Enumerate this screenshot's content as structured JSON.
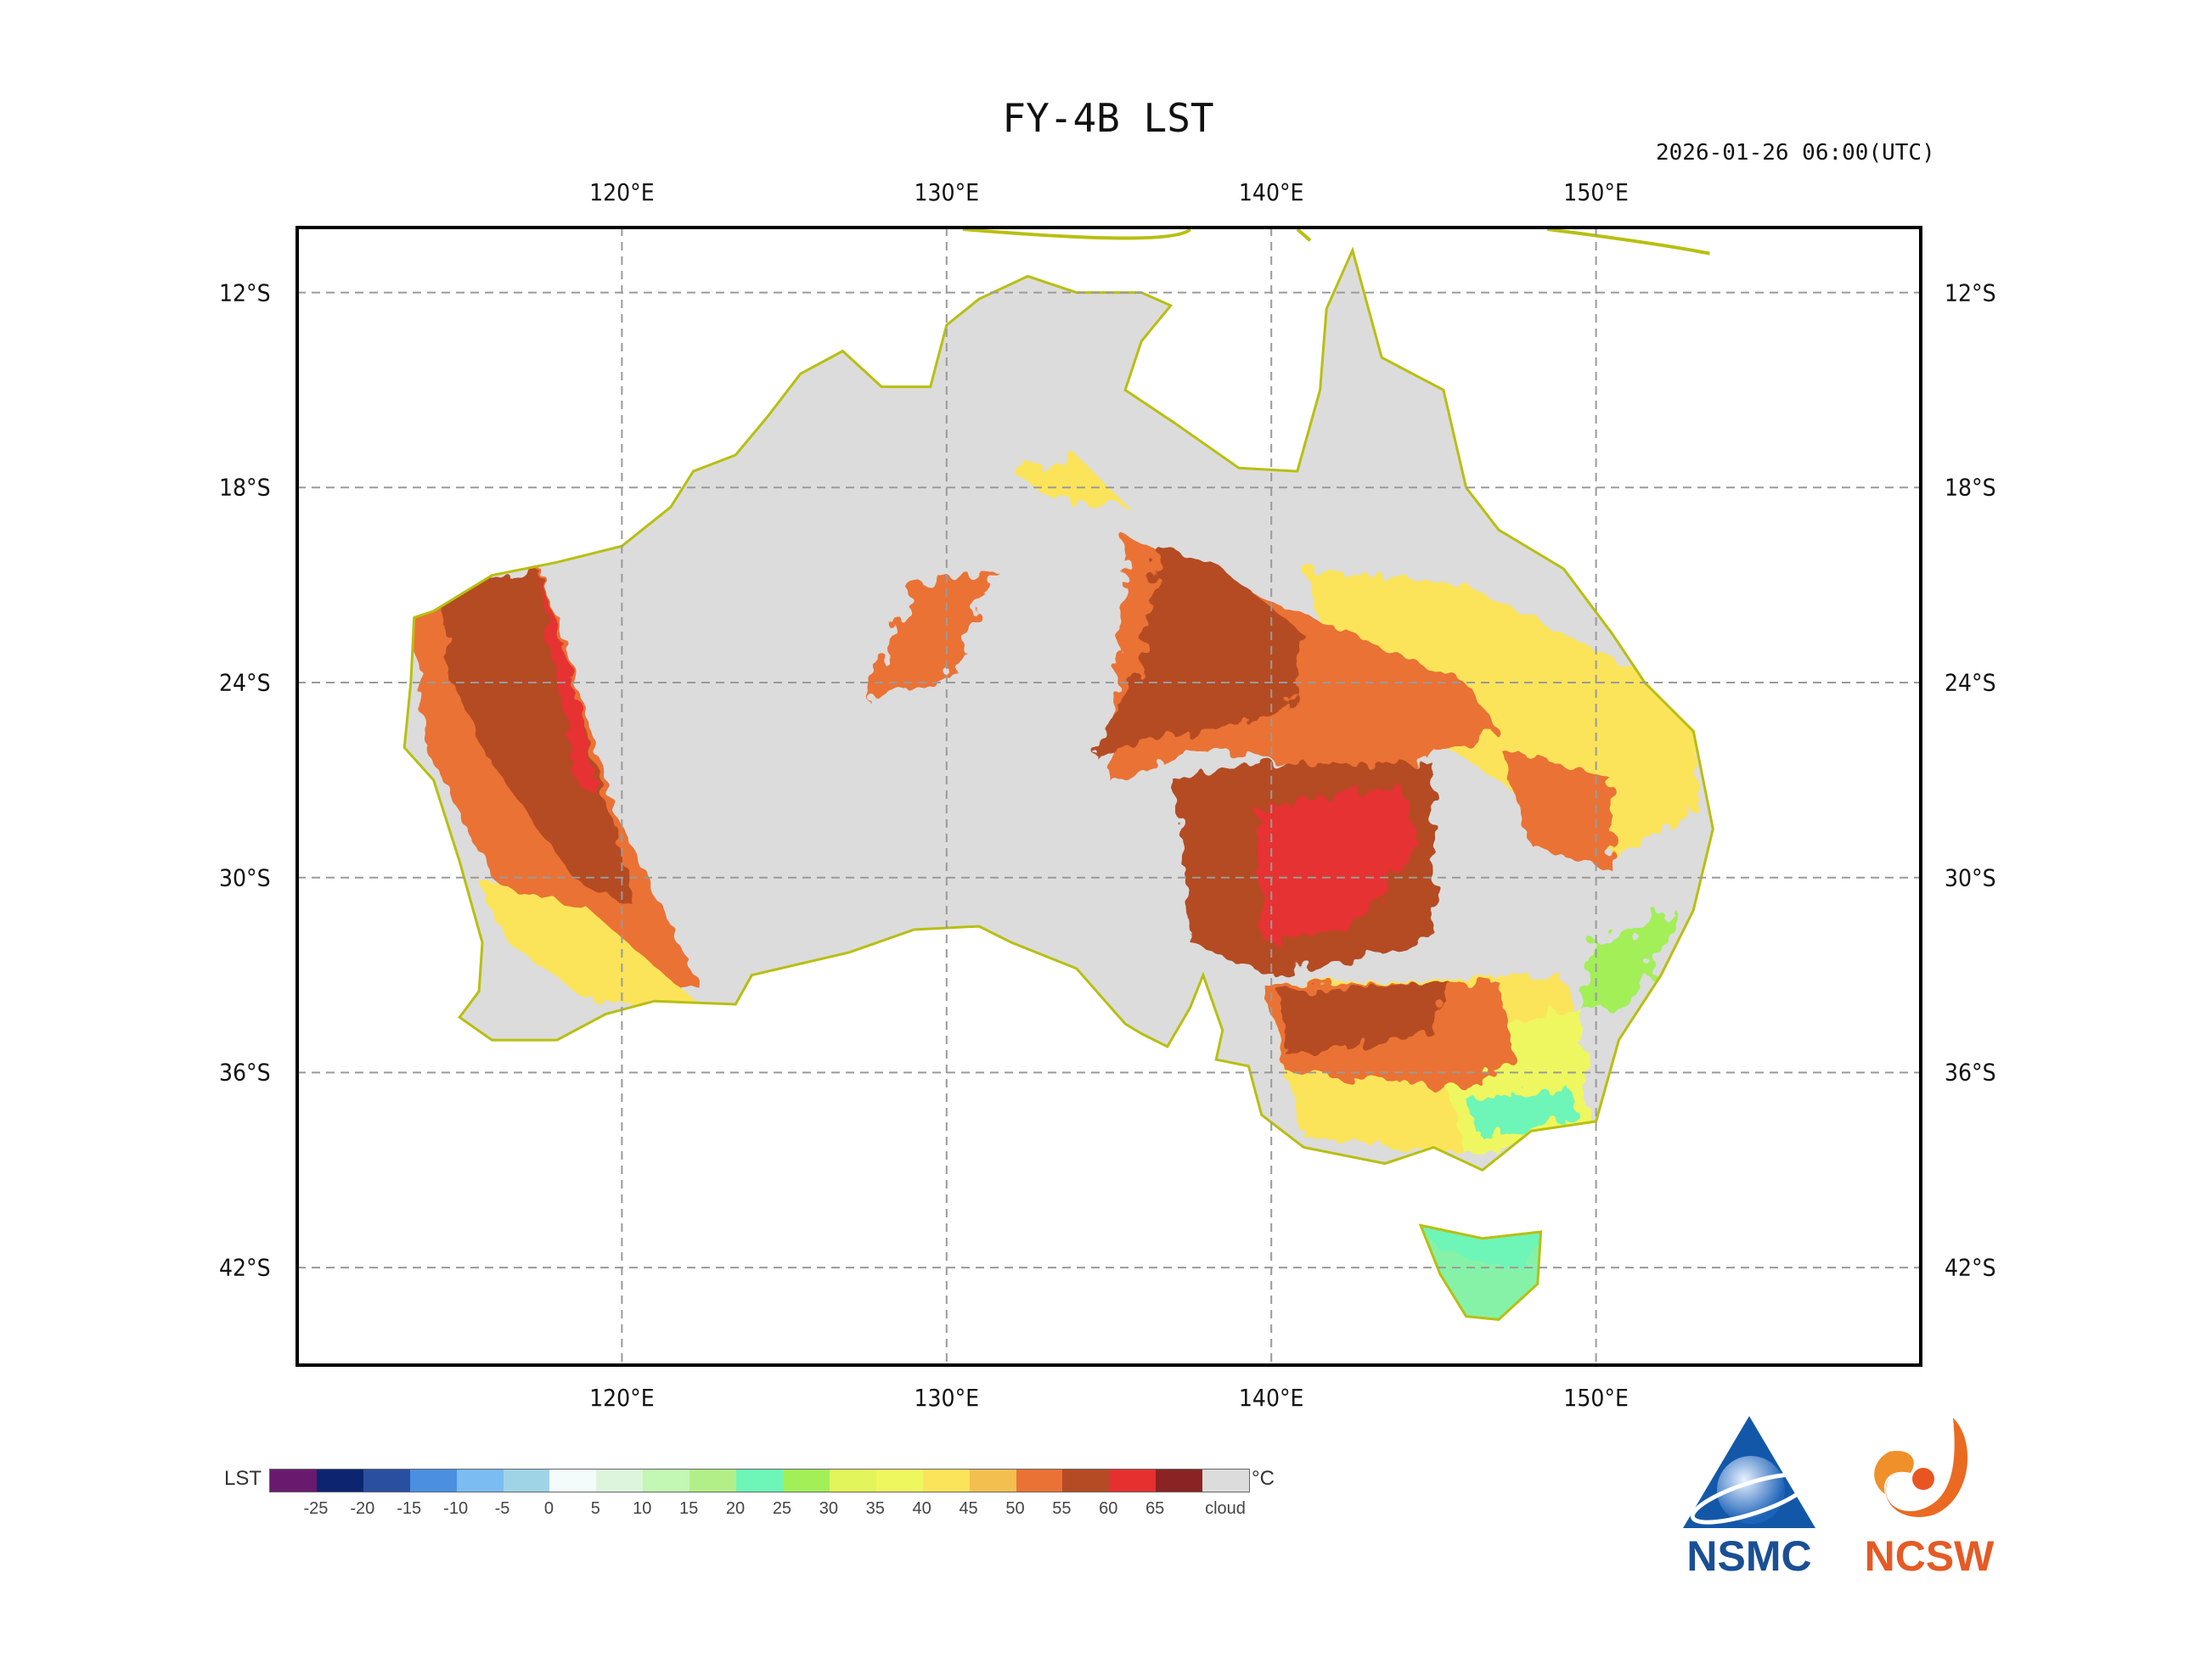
{
  "header": {
    "title": "FY-4B LST",
    "datetime": "2026-01-26 06:00(UTC)"
  },
  "map": {
    "extent": {
      "lon": [
        110,
        160
      ],
      "lat": [
        -10,
        -45
      ]
    },
    "lon_ticks": [
      "120°E",
      "130°E",
      "140°E",
      "150°E"
    ],
    "lon_values": [
      120,
      130,
      140,
      150
    ],
    "lat_ticks": [
      "12°S",
      "18°S",
      "24°S",
      "30°S",
      "36°S",
      "42°S"
    ],
    "lat_values": [
      -12,
      -18,
      -24,
      -30,
      -36,
      -42
    ],
    "gridlines": true,
    "coastline_color": "#b8bf10",
    "cloud_color": "#dcdcdc"
  },
  "colorbar": {
    "label": "LST",
    "unit": "°C",
    "ticks": [
      "-25",
      "-20",
      "-15",
      "-10",
      "-5",
      "0",
      "5",
      "10",
      "15",
      "20",
      "25",
      "30",
      "35",
      "40",
      "45",
      "50",
      "55",
      "60",
      "65"
    ],
    "cloud_label": "cloud",
    "colors": [
      "#6a1a6e",
      "#0d2570",
      "#2a4fa0",
      "#4a8fe0",
      "#7bbcf2",
      "#9fd4e6",
      "#f4fbfb",
      "#ddf5dc",
      "#c2f7b4",
      "#b3ef88",
      "#6ef5b8",
      "#a2ef58",
      "#e2f55a",
      "#eef75e",
      "#fbe45a",
      "#f3c050",
      "#ea7234",
      "#b54b24",
      "#e63030",
      "#8a2424",
      "#dcdcdc"
    ]
  },
  "logos": {
    "left": "NSMC",
    "right": "NCSW"
  }
}
